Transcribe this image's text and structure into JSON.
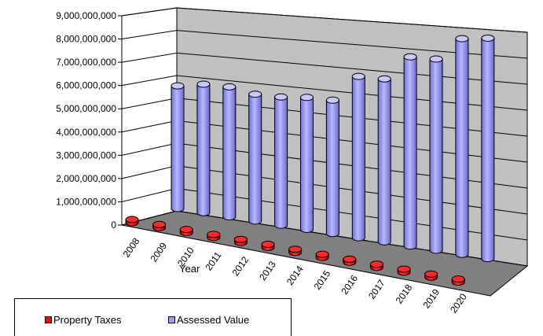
{
  "chart_data": {
    "type": "bar",
    "style": "3d-cylinder",
    "categories": [
      "2008",
      "2009",
      "2010",
      "2011",
      "2012",
      "2013",
      "2014",
      "2015",
      "2016",
      "2017",
      "2018",
      "2019",
      "2020"
    ],
    "series": [
      {
        "name": "Property Taxes",
        "color": "#ff0000",
        "values": [
          60000000,
          60000000,
          60000000,
          60000000,
          60000000,
          60000000,
          60000000,
          60000000,
          60000000,
          60000000,
          60000000,
          60000000,
          60000000
        ]
      },
      {
        "name": "Assessed Value",
        "color": "#9999ff",
        "values": [
          5500000000,
          5700000000,
          5700000000,
          5500000000,
          5500000000,
          5600000000,
          5600000000,
          6700000000,
          6700000000,
          7700000000,
          7700000000,
          8600000000,
          8700000000
        ]
      }
    ],
    "y_ticks": [
      "0",
      "1,000,000,000",
      "2,000,000,000",
      "3,000,000,000",
      "4,000,000,000",
      "5,000,000,000",
      "6,000,000,000",
      "7,000,000,000",
      "8,000,000,000",
      "9,000,000,000"
    ],
    "ylim": [
      0,
      9000000000
    ],
    "xlabel": "Year",
    "ylabel": "",
    "title": "",
    "grid": true,
    "legend_position": "bottom-left"
  }
}
